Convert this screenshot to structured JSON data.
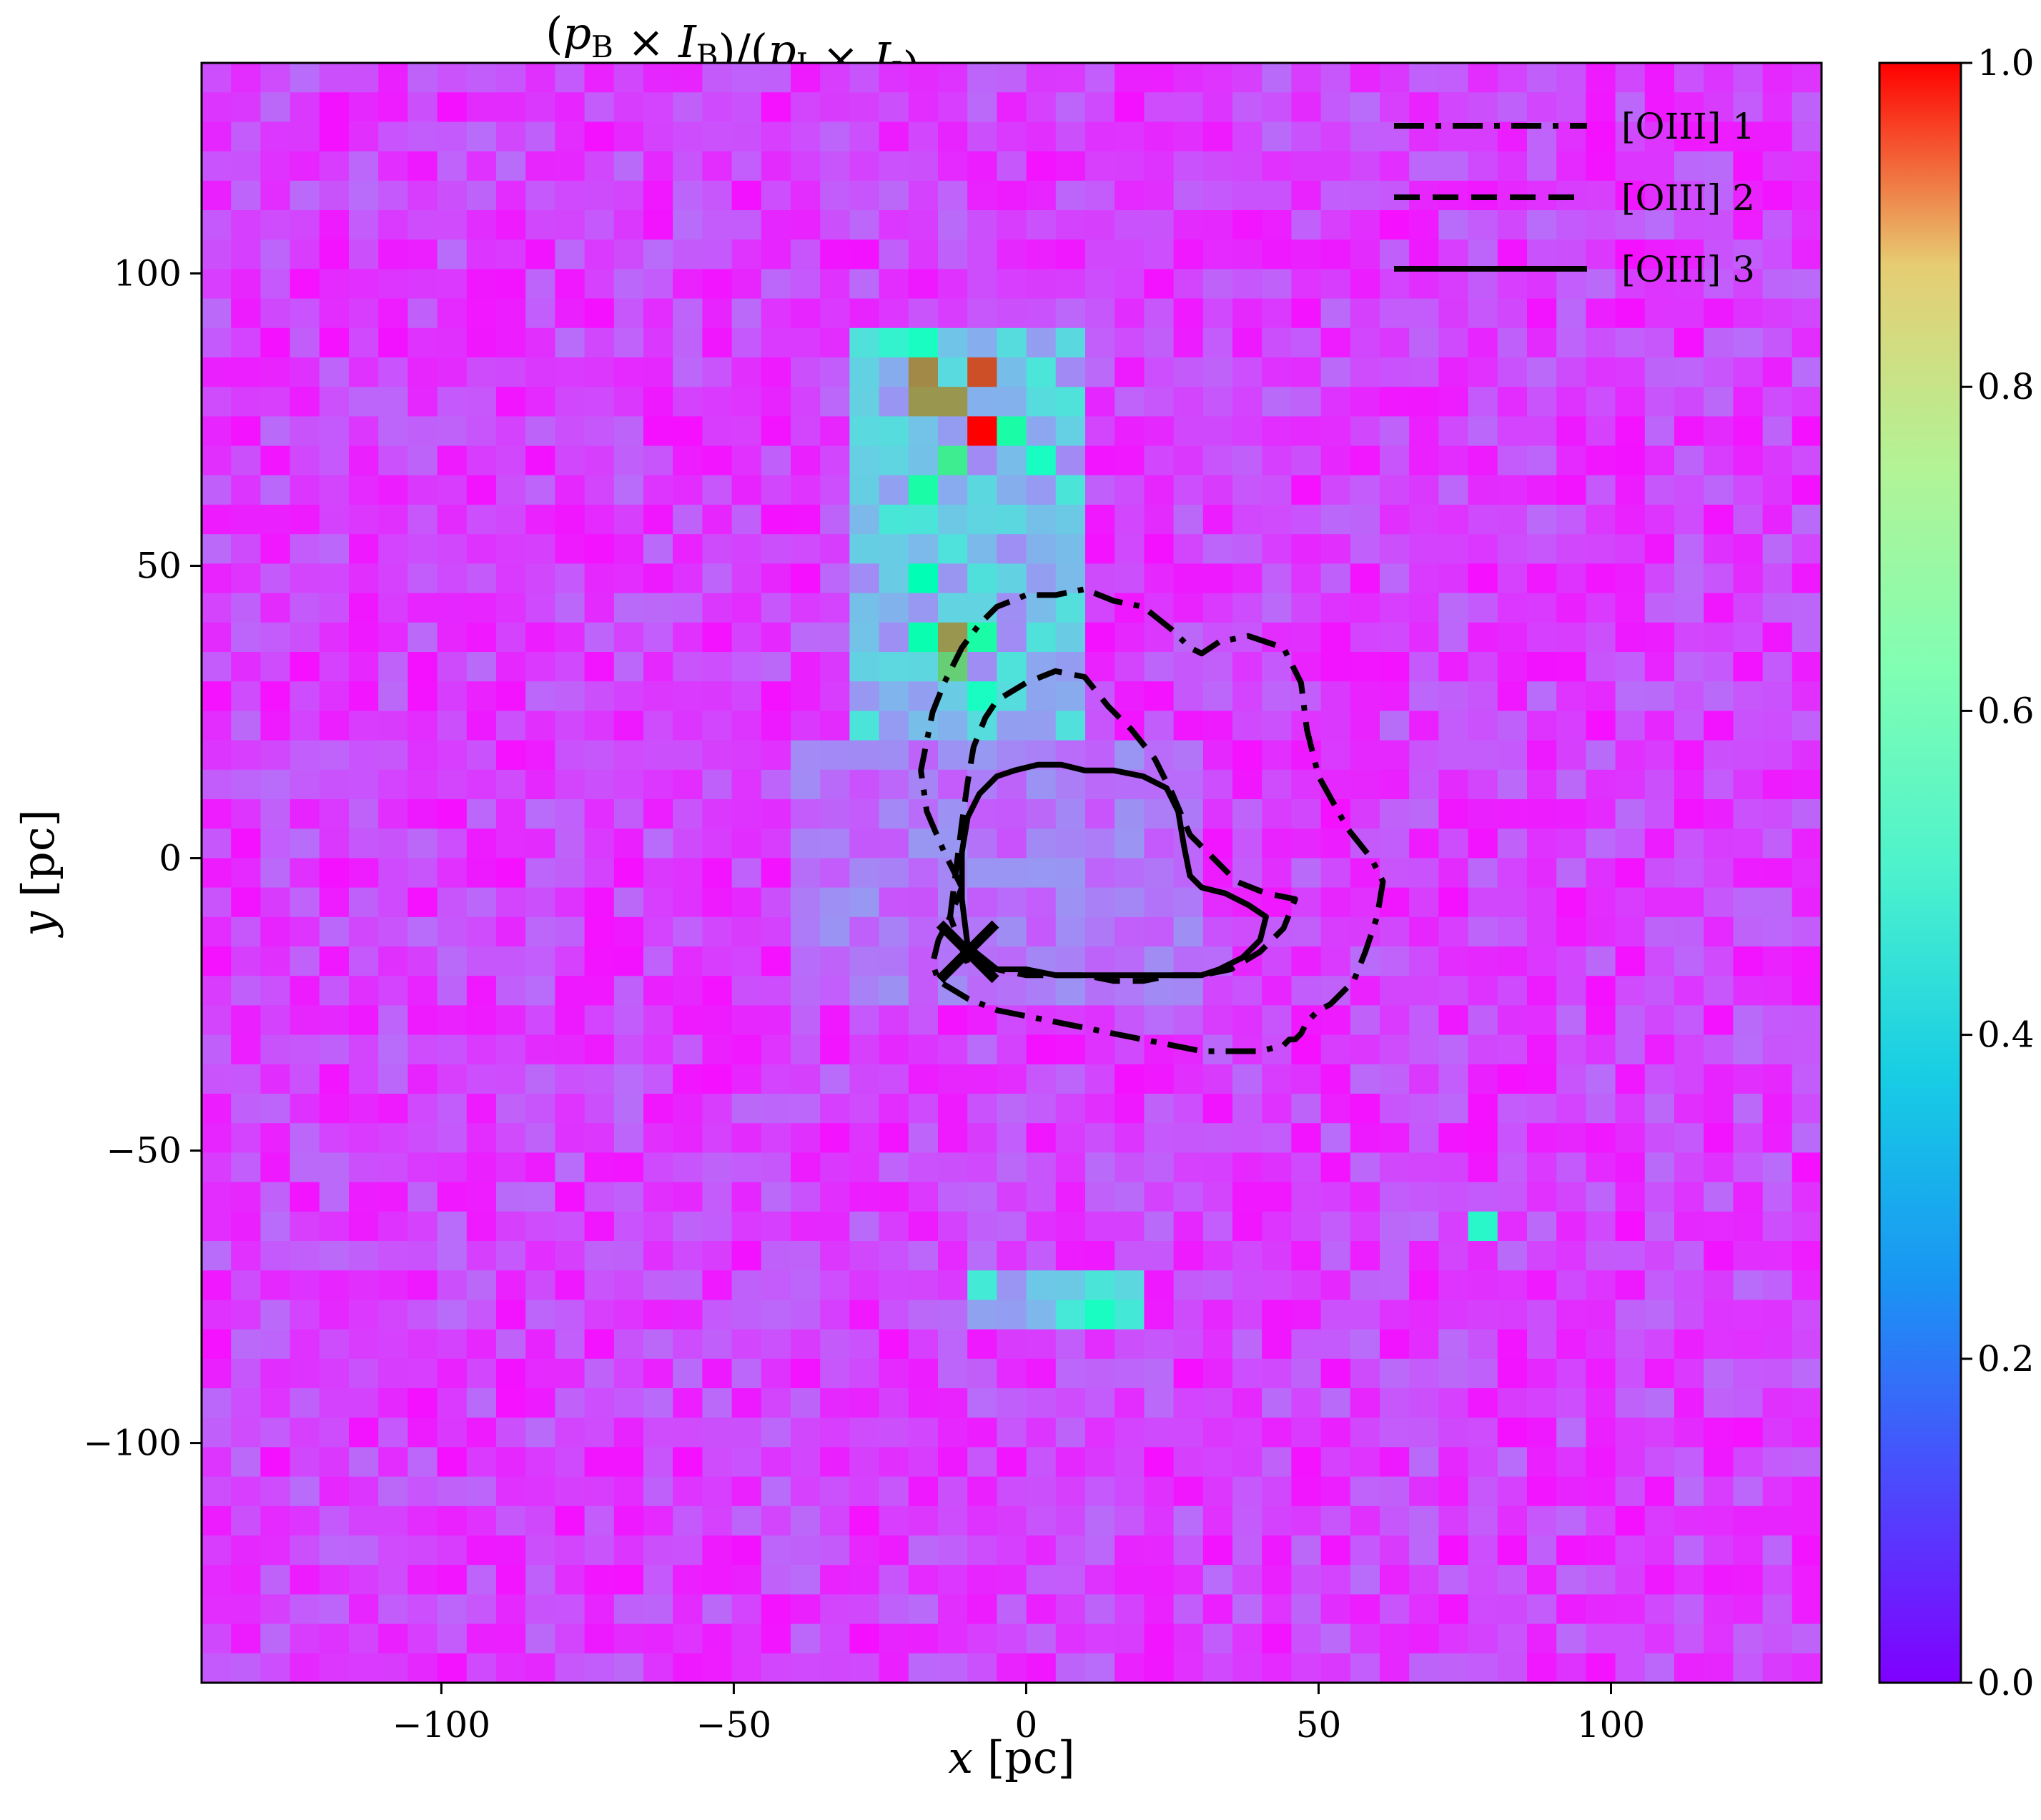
{
  "chart_data": {
    "type": "heatmap",
    "title": {
      "parts": [
        {
          "t": "(",
          "style": "normal"
        },
        {
          "t": "p",
          "style": "italic"
        },
        {
          "t": "B",
          "style": "sub"
        },
        {
          "t": " × ",
          "style": "normal"
        },
        {
          "t": "I",
          "style": "italic"
        },
        {
          "t": "B",
          "style": "sub"
        },
        {
          "t": ")/(",
          "style": "normal"
        },
        {
          "t": "p",
          "style": "italic"
        },
        {
          "t": "I",
          "style": "sub"
        },
        {
          "t": " × ",
          "style": "normal"
        },
        {
          "t": "I",
          "style": "italic"
        },
        {
          "t": "I",
          "style": "sub"
        },
        {
          "t": ")",
          "style": "normal"
        }
      ]
    },
    "xlabel": {
      "var": "x",
      "unit": " [pc]"
    },
    "ylabel": {
      "var": "y",
      "unit": " [pc]"
    },
    "xlim": [
      -141,
      136
    ],
    "ylim": [
      -141,
      136
    ],
    "x_ticks": [
      -100,
      -50,
      0,
      50,
      100
    ],
    "x_tick_labels": [
      "−100",
      "−50",
      "0",
      "50",
      "100"
    ],
    "y_ticks": [
      -100,
      -50,
      0,
      50,
      100
    ],
    "y_tick_labels": [
      "−100",
      "−50",
      "0",
      "50",
      "100"
    ],
    "colorbar": {
      "colormap": "rainbow",
      "range": [
        0.0,
        1.0
      ],
      "ticks": [
        0.0,
        0.2,
        0.4,
        0.6,
        0.8,
        1.0
      ],
      "tick_labels": [
        "0.0",
        "0.2",
        "0.4",
        "0.6",
        "0.8",
        "1.0"
      ]
    },
    "grid": {
      "nx": 55,
      "ny": 55,
      "pixel_size_pc": 5.04,
      "background_level": 0.08,
      "background_scatter": 0.06
    },
    "hot_pixels": [
      {
        "x": -16.5,
        "y": 82,
        "v": 0.82
      },
      {
        "x": -16.5,
        "y": 77,
        "v": 0.8
      },
      {
        "x": -11.5,
        "y": 77,
        "v": 0.8
      },
      {
        "x": -6.5,
        "y": 82,
        "v": 0.9
      },
      {
        "x": -6.5,
        "y": 72,
        "v": 1.0
      },
      {
        "x": -1.5,
        "y": 72,
        "v": 0.55
      },
      {
        "x": -11.5,
        "y": 67,
        "v": 0.62
      },
      {
        "x": -16.5,
        "y": 62,
        "v": 0.55
      },
      {
        "x": -16.5,
        "y": 87,
        "v": 0.45
      },
      {
        "x": -21.5,
        "y": 87,
        "v": 0.4
      },
      {
        "x": -11.5,
        "y": 37,
        "v": 0.8
      },
      {
        "x": -11.5,
        "y": 32,
        "v": 0.7
      },
      {
        "x": -6.5,
        "y": 37,
        "v": 0.55
      },
      {
        "x": -16.5,
        "y": 47,
        "v": 0.5
      },
      {
        "x": -16.5,
        "y": 37,
        "v": 0.52
      },
      {
        "x": -6.5,
        "y": 27,
        "v": 0.45
      },
      {
        "x": 3.5,
        "y": 67,
        "v": 0.45
      },
      {
        "x": 13.5,
        "y": -77,
        "v": 0.45
      },
      {
        "x": 78.5,
        "y": -62,
        "v": 0.42
      }
    ],
    "warm_regions": [
      {
        "x0": -31,
        "x1": 10,
        "y0": 20,
        "y1": 90,
        "v": 0.3
      },
      {
        "x0": -8,
        "x1": 18,
        "y0": -82,
        "y1": -70,
        "v": 0.32
      },
      {
        "x0": -40,
        "x1": 30,
        "y0": -25,
        "y1": 20,
        "v": 0.17
      }
    ],
    "series": [
      {
        "name": "[OIII] 1",
        "style": "dashdot",
        "x": [
          -11,
          -14,
          -17,
          -18,
          -17,
          -16,
          -14,
          -11,
          -8,
          -5,
          0,
          5,
          10,
          15,
          20,
          25,
          28,
          30,
          33,
          38,
          44,
          47,
          48,
          50,
          55,
          59,
          61,
          60,
          58,
          56,
          54,
          52,
          50,
          48,
          47,
          46,
          45,
          44,
          40,
          35,
          30,
          25,
          20,
          15,
          10,
          5,
          0,
          -5,
          -10,
          -15,
          -16,
          -15,
          -13,
          -11
        ],
        "y": [
          -5,
          1,
          8,
          15,
          20,
          25,
          30,
          36,
          40,
          43,
          45,
          45,
          46,
          44,
          43,
          39,
          36,
          35,
          37,
          38,
          36,
          30,
          22,
          14,
          5,
          0,
          -4,
          -10,
          -16,
          -21,
          -23,
          -25,
          -26,
          -28,
          -30,
          -31,
          -31,
          -32,
          -33,
          -33,
          -33,
          -32,
          -31,
          -30,
          -29,
          -28,
          -27,
          -26,
          -24,
          -21,
          -18,
          -14,
          -10,
          -5
        ]
      },
      {
        "name": "[OIII] 2",
        "style": "dashed",
        "x": [
          -13,
          -12,
          -11,
          -10,
          -9,
          -7,
          -5,
          0,
          5,
          10,
          14,
          18,
          22,
          25,
          28,
          32,
          36,
          41,
          46,
          44,
          40,
          35,
          30,
          25,
          20,
          15,
          10,
          5,
          0,
          -5,
          -10,
          -13
        ],
        "y": [
          -10,
          -2,
          6,
          13,
          19,
          24,
          27,
          30,
          32,
          31,
          26,
          22,
          17,
          11,
          4,
          0,
          -4,
          -6,
          -7,
          -12,
          -16,
          -19,
          -20,
          -20,
          -21,
          -21,
          -20,
          -20,
          -20,
          -19,
          -18,
          -10
        ]
      },
      {
        "name": "[OIII] 3",
        "style": "solid",
        "x": [
          -10,
          -11,
          -11,
          -10,
          -8,
          -5,
          -2,
          2,
          6,
          10,
          15,
          20,
          24,
          26,
          27,
          28,
          30,
          34,
          38,
          41,
          40,
          37,
          33,
          30,
          27,
          25,
          20,
          15,
          10,
          5,
          0,
          -5,
          -10
        ],
        "y": [
          -15,
          -7,
          1,
          7,
          11,
          14,
          15,
          16,
          16,
          15,
          15,
          14,
          12,
          8,
          2,
          -3,
          -5,
          -6,
          -8,
          -10,
          -14,
          -17,
          -19,
          -20,
          -20,
          -20,
          -20,
          -20,
          -20,
          -20,
          -19,
          -19,
          -15
        ]
      }
    ],
    "marker": {
      "symbol": "+",
      "x": -10,
      "y": -16,
      "angle_deg": -45
    }
  }
}
